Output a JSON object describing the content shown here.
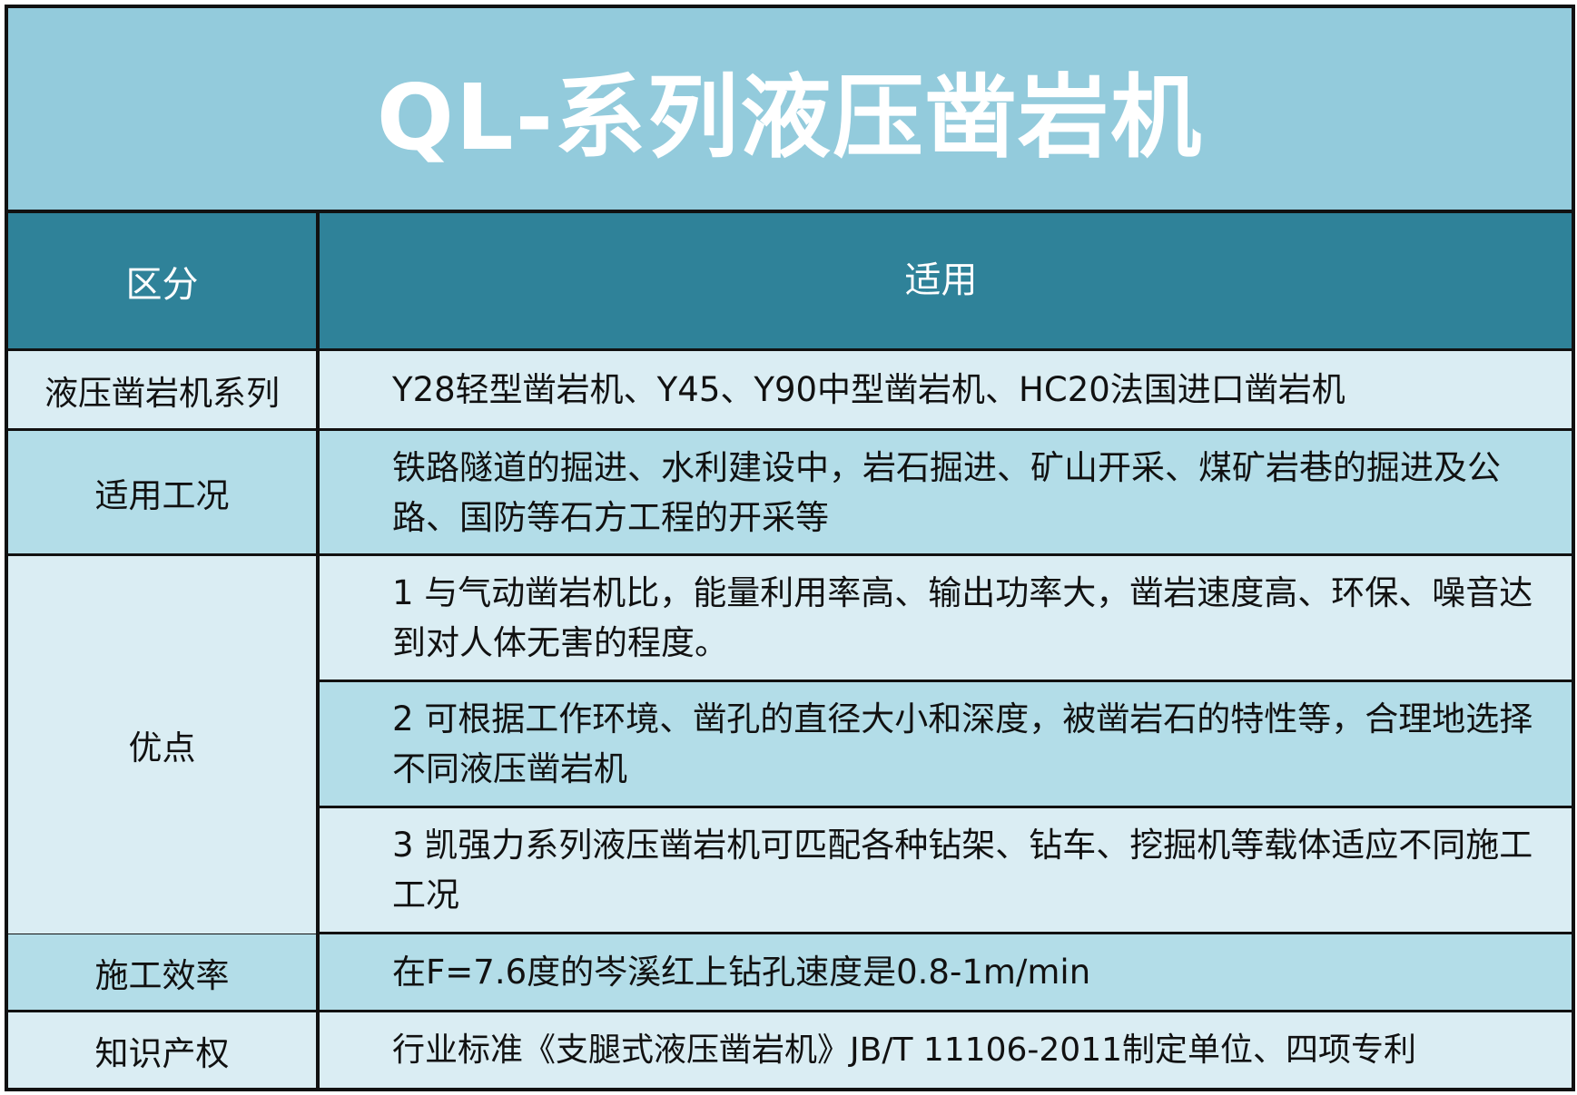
{
  "title": "QL-系列液压凿岩机",
  "header": {
    "col1": "区分",
    "col2": "适用"
  },
  "rows": {
    "series": {
      "label": "液压凿岩机系列",
      "value": "Y28轻型凿岩机、Y45、Y90中型凿岩机、HC20法国进口凿岩机"
    },
    "conditions": {
      "label": "适用工况",
      "value": "铁路隧道的掘进、水利建设中，岩石掘进、矿山开采、煤矿岩巷的掘进及公路、国防等石方工程的开采等"
    },
    "advantages": {
      "label": "优点",
      "items": [
        "1 与气动凿岩机比，能量利用率高、输出功率大，凿岩速度高、环保、噪音达到对人体无害的程度。",
        "2 可根据工作环境、凿孔的直径大小和深度，被凿岩石的特性等，合理地选择不同液压凿岩机",
        "3 凯强力系列液压凿岩机可匹配各种钻架、钻车、挖掘机等载体适应不同施工工况"
      ]
    },
    "efficiency": {
      "label": "施工效率",
      "value": "在F=7.6度的岑溪红上钻孔速度是0.8-1m/min"
    },
    "ip": {
      "label": "知识产权",
      "value": "行业标准《支腿式液压凿岩机》JB/T 11106-2011制定单位、四项专利"
    }
  },
  "colors": {
    "title_bg": "#93CBDC",
    "header_bg": "#2F8299",
    "row_light": "#DAEDF3",
    "row_mid": "#B3DDE8"
  }
}
